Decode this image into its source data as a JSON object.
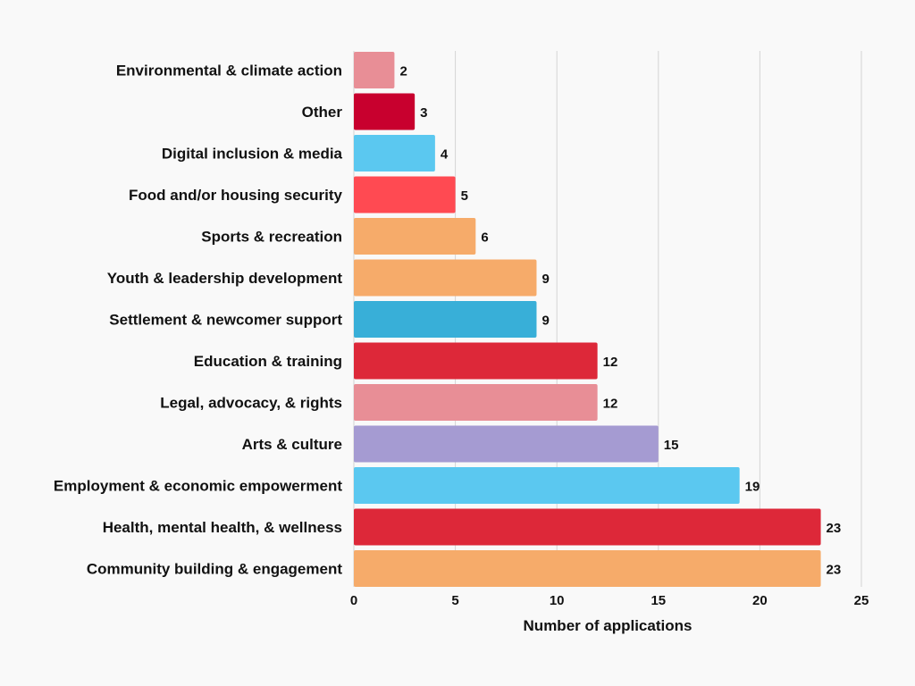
{
  "chart_data": {
    "type": "bar",
    "orientation": "horizontal",
    "xlabel": "Number of applications",
    "xlim": [
      0,
      25
    ],
    "xticks": [
      0,
      5,
      10,
      15,
      20,
      25
    ],
    "grid": true,
    "categories": [
      "Environmental & climate action",
      "Other",
      "Digital inclusion & media",
      "Food and/or housing security",
      "Sports & recreation",
      "Youth & leadership development",
      "Settlement & newcomer support",
      "Education & training",
      "Legal, advocacy, & rights",
      "Arts & culture",
      "Employment & economic empowerment",
      "Health, mental health, & wellness",
      "Community building & engagement"
    ],
    "values": [
      2,
      3,
      4,
      5,
      6,
      9,
      9,
      12,
      12,
      15,
      19,
      23,
      23
    ],
    "colors": [
      "#e88e96",
      "#c8002e",
      "#5bc8f0",
      "#ff4a52",
      "#f6ab6a",
      "#f6ab6a",
      "#38afd8",
      "#dd2839",
      "#e88e96",
      "#a59bd2",
      "#5bc8f0",
      "#dd2839",
      "#f6ab6a"
    ]
  }
}
